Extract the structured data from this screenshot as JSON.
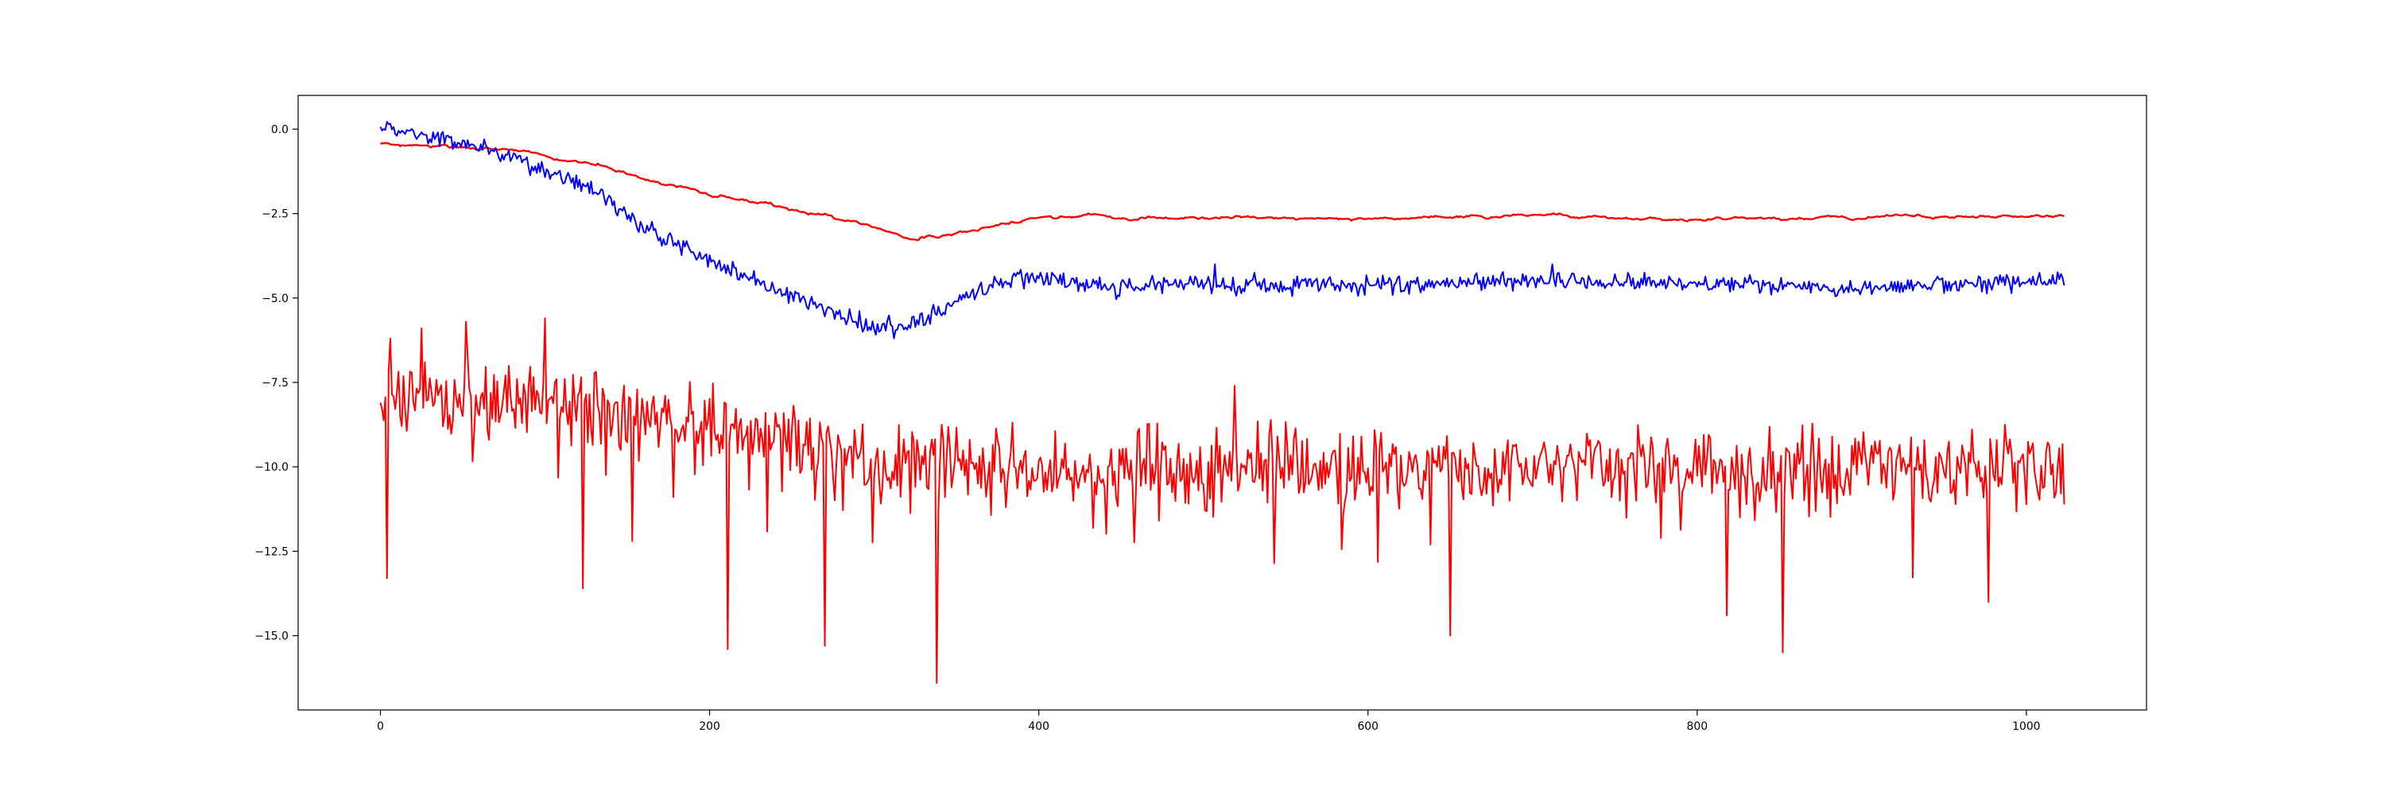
{
  "chart_data": {
    "type": "line",
    "title": "",
    "xlabel": "",
    "ylabel": "",
    "xlim": [
      -50,
      1073
    ],
    "ylim": [
      -17.2,
      1.0
    ],
    "xticks": [
      0,
      200,
      400,
      600,
      800,
      1000
    ],
    "xtick_labels": [
      "0",
      "200",
      "400",
      "600",
      "800",
      "1000"
    ],
    "yticks": [
      0.0,
      -2.5,
      -5.0,
      -7.5,
      -10.0,
      -12.5,
      -15.0
    ],
    "ytick_labels": [
      "0.0",
      "−2.5",
      "−5.0",
      "−7.5",
      "−10.0",
      "−12.5",
      "−15.0"
    ],
    "grid": false,
    "legend": false,
    "n_points": 1024,
    "series": [
      {
        "color": "#ff0000",
        "style": "smooth",
        "anchors_x": [
          0,
          20,
          40,
          60,
          80,
          100,
          120,
          140,
          160,
          180,
          200,
          220,
          240,
          260,
          280,
          300,
          320,
          340,
          360,
          380,
          400,
          430,
          460,
          500,
          600,
          700,
          800,
          900,
          1000,
          1023
        ],
        "anchors_y": [
          -0.45,
          -0.5,
          -0.55,
          -0.58,
          -0.6,
          -0.75,
          -0.95,
          -1.15,
          -1.45,
          -1.7,
          -1.9,
          -2.1,
          -2.3,
          -2.5,
          -2.7,
          -2.9,
          -3.15,
          -3.2,
          -3.0,
          -2.8,
          -2.65,
          -2.55,
          -2.65,
          -2.6,
          -2.65,
          -2.55,
          -2.7,
          -2.6,
          -2.6,
          -2.55
        ],
        "noise": 0.05
      },
      {
        "color": "#0000ff",
        "style": "noisy",
        "anchors_x": [
          0,
          20,
          40,
          60,
          80,
          100,
          120,
          140,
          160,
          180,
          200,
          220,
          240,
          260,
          280,
          300,
          320,
          340,
          360,
          380,
          400,
          450,
          500,
          600,
          700,
          800,
          900,
          1000,
          1023
        ],
        "anchors_y": [
          0.05,
          -0.1,
          -0.35,
          -0.6,
          -0.85,
          -1.2,
          -1.6,
          -2.2,
          -2.9,
          -3.4,
          -3.9,
          -4.3,
          -4.75,
          -5.15,
          -5.5,
          -5.9,
          -5.85,
          -5.4,
          -4.85,
          -4.5,
          -4.4,
          -4.7,
          -4.55,
          -4.65,
          -4.5,
          -4.55,
          -4.7,
          -4.5,
          -4.5
        ],
        "noise": 0.18,
        "spikes": [
          {
            "x": 507,
            "y": -4.0
          },
          {
            "x": 712,
            "y": -4.0
          }
        ]
      },
      {
        "color": "#ff0000",
        "style": "jagged",
        "anchors_x": [
          0,
          100,
          200,
          300,
          400,
          600,
          800,
          1000,
          1023
        ],
        "anchors_y": [
          -7.8,
          -8.1,
          -8.8,
          -9.9,
          -10.1,
          -10.0,
          -10.0,
          -10.0,
          -10.0
        ],
        "noise": 0.75,
        "spikes": [
          {
            "x": 4,
            "y": -13.3
          },
          {
            "x": 6,
            "y": -6.2
          },
          {
            "x": 25,
            "y": -5.9
          },
          {
            "x": 52,
            "y": -5.7
          },
          {
            "x": 100,
            "y": -5.6
          },
          {
            "x": 123,
            "y": -13.6
          },
          {
            "x": 153,
            "y": -12.2
          },
          {
            "x": 211,
            "y": -15.4
          },
          {
            "x": 270,
            "y": -15.3
          },
          {
            "x": 338,
            "y": -16.4
          },
          {
            "x": 519,
            "y": -7.6
          },
          {
            "x": 650,
            "y": -15.0
          },
          {
            "x": 818,
            "y": -14.4
          },
          {
            "x": 852,
            "y": -15.5
          },
          {
            "x": 977,
            "y": -14.0
          }
        ]
      }
    ]
  }
}
